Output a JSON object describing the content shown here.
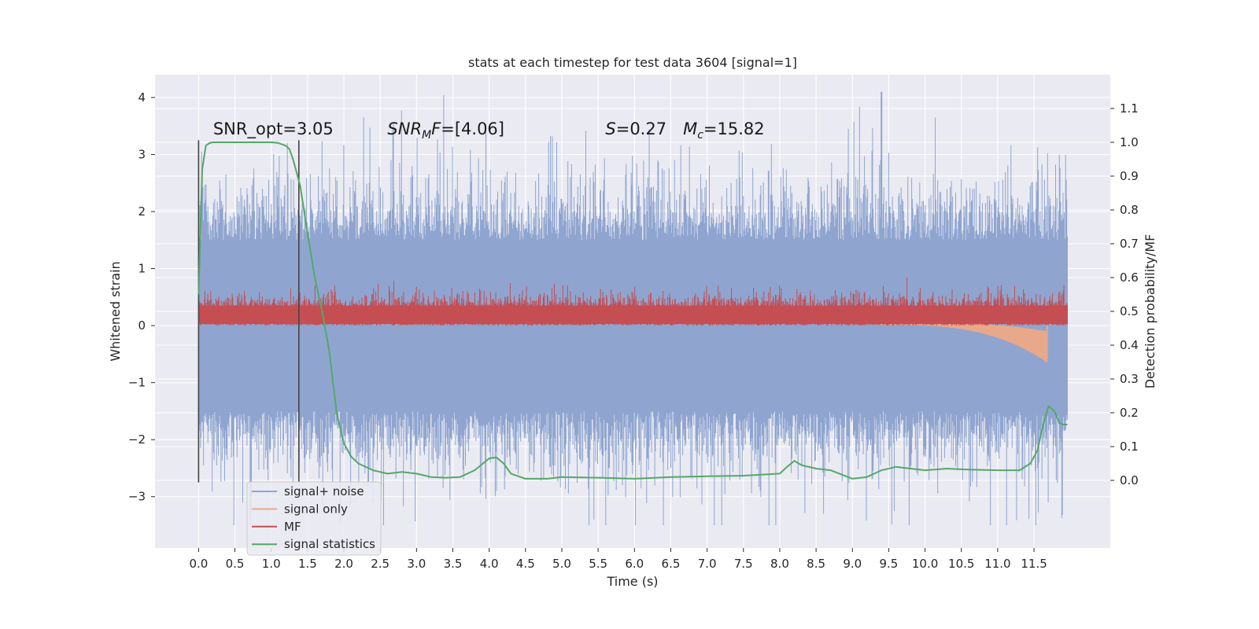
{
  "chart_data": {
    "type": "line",
    "title": "stats at each timestep for test data 3604 [signal=1]",
    "xlabel": "Time (s)",
    "ylabel": "Whitened strain",
    "ylabel_right": "Detection probability/MF",
    "xlim": [
      -0.6,
      12.55
    ],
    "ylim": [
      -3.9,
      4.4
    ],
    "ylim_right": [
      -0.2,
      1.2
    ],
    "x_ticks": [
      0.0,
      0.5,
      1.0,
      1.5,
      2.0,
      2.5,
      3.0,
      3.5,
      4.0,
      4.5,
      5.0,
      5.5,
      6.0,
      6.5,
      7.0,
      7.5,
      8.0,
      8.5,
      9.0,
      9.5,
      10.0,
      10.5,
      11.0,
      11.5
    ],
    "x_tick_labels": [
      "0.0",
      "0.5",
      "1.0",
      "1.5",
      "2.0",
      "2.5",
      "3.0",
      "3.5",
      "4.0",
      "4.5",
      "5.0",
      "5.5",
      "6.0",
      "6.5",
      "7.0",
      "7.5",
      "8.0",
      "8.5",
      "9.0",
      "9.5",
      "10.0",
      "10.5",
      "11.0",
      "11.5"
    ],
    "y_ticks": [
      -3,
      -2,
      -1,
      0,
      1,
      2,
      3,
      4
    ],
    "y_tick_labels": [
      "−3",
      "−2",
      "−1",
      "0",
      "1",
      "2",
      "3",
      "4"
    ],
    "y_right_ticks": [
      0.0,
      0.1,
      0.2,
      0.3,
      0.4,
      0.5,
      0.6,
      0.7,
      0.8,
      0.9,
      1.0,
      1.1
    ],
    "y_right_tick_labels": [
      "0.0",
      "0.1",
      "0.2",
      "0.3",
      "0.4",
      "0.5",
      "0.6",
      "0.7",
      "0.8",
      "0.9",
      "1.0",
      "1.1"
    ],
    "vlines": [
      0.0,
      1.38
    ],
    "vline_range": [
      -2.75,
      3.25
    ],
    "annotations": [
      {
        "text": "SNR_opt=3.05",
        "x": 0.2,
        "y": 3.35
      },
      {
        "text": "SNR_MF=[4.06]",
        "x": 2.6,
        "y": 3.35
      },
      {
        "text": "S=0.27   M_c=15.82",
        "x": 5.6,
        "y": 3.35
      }
    ],
    "legend_position": "lower-left",
    "series": [
      {
        "name": "signal+ noise",
        "color": "#8fa5d0",
        "envelope": {
          "t_max": 11.96,
          "core_amplitude": 2.0,
          "peak_max": 4.1,
          "peak_min": -3.5
        }
      },
      {
        "name": "signal only",
        "color": "#e8a88a",
        "start": 9.4,
        "end": 11.68,
        "final_value": -0.58
      },
      {
        "name": "MF",
        "color": "#c44e52",
        "baseline": 0.2,
        "upper_core": 0.55,
        "upper_max": 1.0
      },
      {
        "name": "signal statistics",
        "color": "#55a868",
        "axis": "right",
        "x": [
          0.0,
          0.05,
          0.1,
          0.15,
          0.2,
          0.3,
          0.5,
          0.8,
          1.0,
          1.1,
          1.2,
          1.25,
          1.3,
          1.4,
          1.5,
          1.6,
          1.7,
          1.8,
          1.9,
          2.0,
          2.1,
          2.2,
          2.4,
          2.6,
          2.8,
          3.0,
          3.2,
          3.4,
          3.6,
          3.8,
          4.0,
          4.1,
          4.2,
          4.3,
          4.5,
          4.8,
          5.0,
          5.5,
          6.0,
          6.5,
          7.0,
          7.5,
          8.0,
          8.1,
          8.2,
          8.3,
          8.5,
          8.7,
          9.0,
          9.2,
          9.4,
          9.6,
          9.8,
          10.0,
          10.3,
          10.6,
          11.0,
          11.3,
          11.45,
          11.55,
          11.62,
          11.7,
          11.78,
          11.85,
          11.9,
          11.96
        ],
        "y": [
          0.55,
          0.92,
          0.99,
          0.998,
          1.0,
          1.0,
          1.0,
          1.0,
          1.0,
          0.998,
          0.99,
          0.98,
          0.95,
          0.87,
          0.73,
          0.6,
          0.5,
          0.38,
          0.2,
          0.11,
          0.07,
          0.05,
          0.03,
          0.02,
          0.025,
          0.02,
          0.01,
          0.008,
          0.01,
          0.03,
          0.065,
          0.068,
          0.05,
          0.02,
          0.005,
          0.005,
          0.01,
          0.008,
          0.005,
          0.01,
          0.012,
          0.014,
          0.02,
          0.04,
          0.058,
          0.045,
          0.035,
          0.03,
          0.005,
          0.01,
          0.03,
          0.04,
          0.035,
          0.03,
          0.035,
          0.032,
          0.03,
          0.03,
          0.05,
          0.09,
          0.16,
          0.22,
          0.205,
          0.17,
          0.165,
          0.165
        ]
      }
    ]
  }
}
